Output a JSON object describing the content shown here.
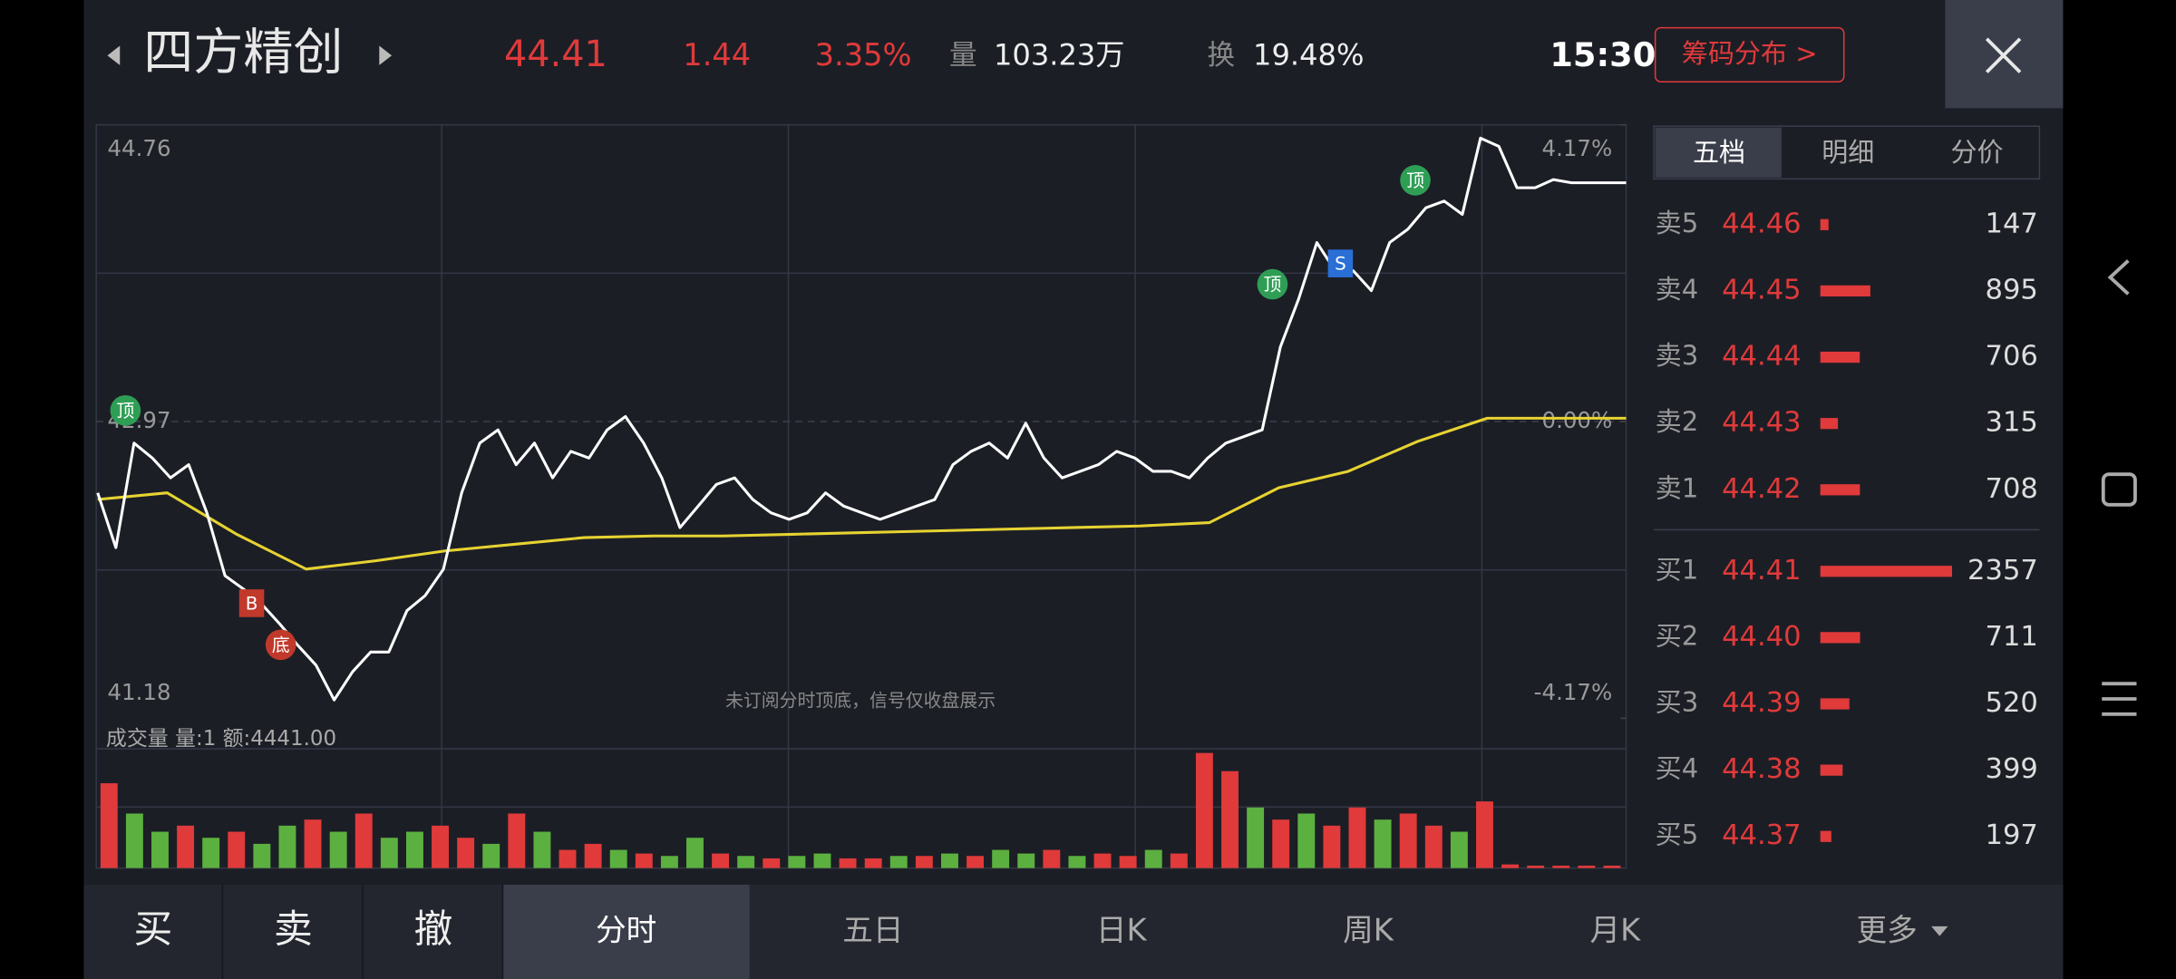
{
  "header": {
    "name": "四方精创",
    "price": "44.41",
    "change": "1.44",
    "pct": "3.35%",
    "vol_label": "量",
    "vol": "103.23万",
    "turnover_label": "换",
    "turnover": "19.48%",
    "time": "15:30",
    "chip_button": "筹码分布 >"
  },
  "intraday": {
    "ylim": [
      41.18,
      44.76
    ],
    "yticks": [
      44.76,
      42.97,
      41.18
    ],
    "y2lim": [
      -4.17,
      4.17
    ],
    "y2ticks": [
      {
        "value": 4.17,
        "label": "4.17%"
      },
      {
        "value": 0,
        "label": "0.00%"
      },
      {
        "value": -4.17,
        "label": "-4.17%"
      }
    ],
    "price_color": "#ffffff",
    "avg_color": "#e6d331",
    "price": [
      42.54,
      42.21,
      42.84,
      42.75,
      42.63,
      42.71,
      42.42,
      42.04,
      41.96,
      41.87,
      41.75,
      41.62,
      41.5,
      41.29,
      41.46,
      41.58,
      41.58,
      41.83,
      41.92,
      42.08,
      42.54,
      42.84,
      42.92,
      42.71,
      42.84,
      42.63,
      42.79,
      42.75,
      42.92,
      43.0,
      42.84,
      42.63,
      42.33,
      42.46,
      42.59,
      42.63,
      42.5,
      42.42,
      42.38,
      42.42,
      42.54,
      42.46,
      42.42,
      42.38,
      42.42,
      42.46,
      42.5,
      42.71,
      42.79,
      42.84,
      42.75,
      42.96,
      42.75,
      42.63,
      42.67,
      42.71,
      42.79,
      42.75,
      42.67,
      42.67,
      42.63,
      42.75,
      42.84,
      42.88,
      42.92,
      43.42,
      43.71,
      44.05,
      43.88,
      43.88,
      43.76,
      44.05,
      44.13,
      44.26,
      44.3,
      44.22,
      44.68,
      44.63,
      44.38,
      44.38,
      44.43,
      44.41,
      44.41,
      44.41,
      44.41
    ],
    "avg": [
      42.5,
      42.54,
      42.29,
      42.08,
      42.13,
      42.19,
      42.23,
      42.27,
      42.28,
      42.28,
      42.29,
      42.3,
      42.31,
      42.32,
      42.33,
      42.34,
      42.36,
      42.57,
      42.67,
      42.85,
      42.99,
      42.99,
      42.99
    ],
    "notice": "未订阅分时顶底，信号仅收盘展示",
    "signals": [
      "顶",
      "B",
      "底",
      "顶",
      "S",
      "顶"
    ]
  },
  "volume": {
    "label": "成交量 量:1 额:4441.00",
    "up_color": "#e03a3a",
    "down_color": "#5cb040",
    "values": [
      70,
      45,
      30,
      35,
      25,
      30,
      20,
      35,
      40,
      30,
      45,
      25,
      30,
      35,
      25,
      20,
      45,
      30,
      15,
      20,
      15,
      12,
      10,
      25,
      12,
      10,
      8,
      10,
      12,
      8,
      8,
      10,
      10,
      12,
      10,
      15,
      12,
      15,
      10,
      12,
      10,
      15,
      12,
      95,
      80,
      50,
      40,
      45,
      35,
      50,
      40,
      45,
      35,
      30,
      55,
      3,
      2,
      2,
      2,
      2
    ],
    "up": [
      1,
      0,
      0,
      1,
      0,
      1,
      0,
      0,
      1,
      0,
      1,
      0,
      0,
      1,
      1,
      0,
      1,
      0,
      1,
      1,
      0,
      1,
      0,
      0,
      1,
      0,
      1,
      0,
      0,
      1,
      1,
      0,
      1,
      0,
      1,
      0,
      0,
      1,
      0,
      1,
      1,
      0,
      1,
      1,
      1,
      0,
      1,
      0,
      1,
      1,
      0,
      1,
      1,
      0,
      1,
      1,
      1,
      1,
      1,
      1
    ]
  },
  "order_book": {
    "tabs": [
      "五档",
      "明细",
      "分价"
    ],
    "asks": [
      {
        "label": "卖5",
        "price": "44.46",
        "volume": 147
      },
      {
        "label": "卖4",
        "price": "44.45",
        "volume": 895
      },
      {
        "label": "卖3",
        "price": "44.44",
        "volume": 706
      },
      {
        "label": "卖2",
        "price": "44.43",
        "volume": 315
      },
      {
        "label": "卖1",
        "price": "44.42",
        "volume": 708
      }
    ],
    "bids": [
      {
        "label": "买1",
        "price": "44.41",
        "volume": 2357
      },
      {
        "label": "买2",
        "price": "44.40",
        "volume": 711
      },
      {
        "label": "买3",
        "price": "44.39",
        "volume": 520
      },
      {
        "label": "买4",
        "price": "44.38",
        "volume": 399
      },
      {
        "label": "买5",
        "price": "44.37",
        "volume": 197
      }
    ]
  },
  "actions": [
    "买",
    "卖",
    "撤"
  ],
  "periods": [
    "分时",
    "五日",
    "日K",
    "周K",
    "月K",
    "更多"
  ]
}
